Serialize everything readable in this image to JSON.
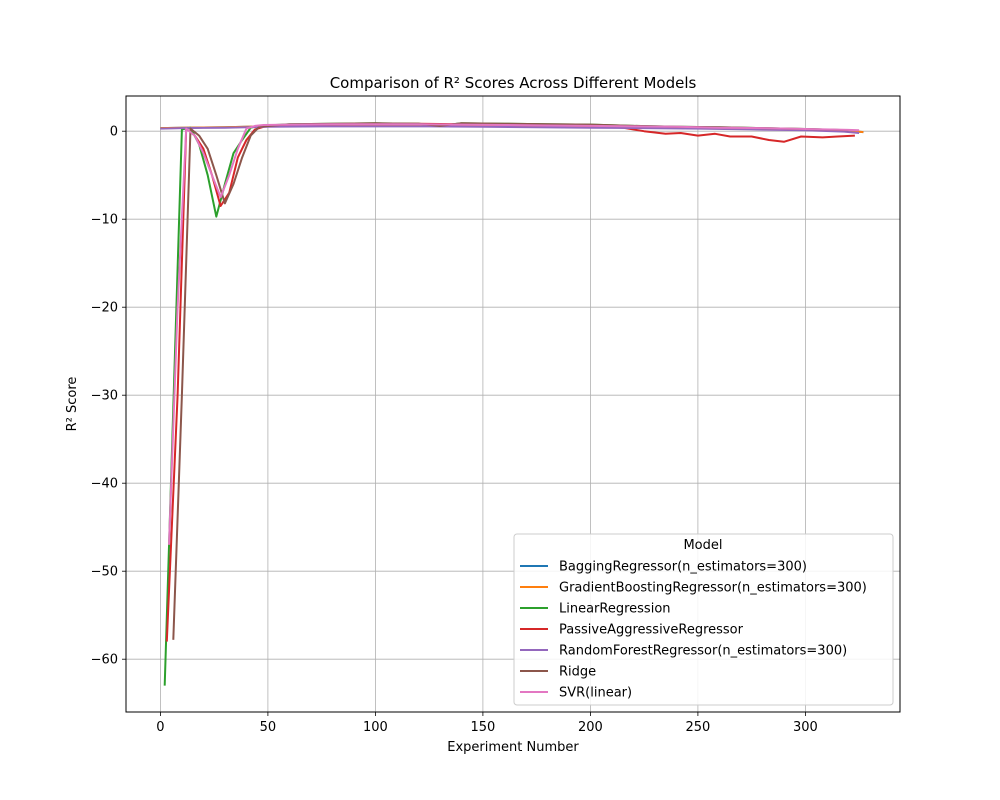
{
  "chart_data": {
    "type": "line",
    "title": "Comparison of R² Scores Across Different Models",
    "xlabel": "Experiment Number",
    "ylabel": "R² Score",
    "xlim": [
      -16,
      344
    ],
    "ylim": [
      -66,
      4
    ],
    "xticks": [
      0,
      50,
      100,
      150,
      200,
      250,
      300
    ],
    "yticks": [
      0,
      -10,
      -20,
      -30,
      -40,
      -50,
      -60
    ],
    "grid": true,
    "legend": {
      "title": "Model",
      "placement": "lower-right"
    },
    "series": [
      {
        "name": "BaggingRegressor(n_estimators=300)",
        "color": "#1f77b4",
        "x": [
          0,
          10,
          20,
          30,
          40,
          50,
          75,
          100,
          125,
          150,
          175,
          200,
          225,
          250,
          275,
          300,
          320,
          327
        ],
        "y": [
          0.35,
          0.4,
          0.42,
          0.45,
          0.5,
          0.55,
          0.6,
          0.6,
          0.6,
          0.58,
          0.55,
          0.5,
          0.45,
          0.4,
          0.3,
          0.2,
          0.05,
          -0.1
        ]
      },
      {
        "name": "GradientBoostingRegressor(n_estimators=300)",
        "color": "#ff7f0e",
        "x": [
          0,
          10,
          20,
          30,
          40,
          50,
          75,
          100,
          125,
          150,
          175,
          200,
          225,
          250,
          275,
          300,
          320,
          327
        ],
        "y": [
          0.35,
          0.4,
          0.42,
          0.45,
          0.5,
          0.55,
          0.6,
          0.6,
          0.6,
          0.58,
          0.55,
          0.5,
          0.45,
          0.4,
          0.3,
          0.2,
          0.05,
          -0.1
        ]
      },
      {
        "name": "LinearRegression",
        "color": "#2ca02c",
        "x": [
          2,
          10,
          14,
          18,
          22,
          26,
          30,
          34,
          38,
          42,
          46,
          60,
          80,
          100,
          120,
          130,
          140,
          160,
          180,
          200,
          220,
          240,
          260,
          280,
          300,
          320
        ],
        "y": [
          -63,
          0.2,
          0.4,
          -1.5,
          -5,
          -9.7,
          -6,
          -2.5,
          -1,
          0.4,
          0.6,
          0.8,
          0.85,
          0.9,
          0.85,
          0.6,
          0.9,
          0.85,
          0.8,
          0.75,
          0.6,
          0.5,
          0.45,
          0.35,
          0.25,
          0.1
        ]
      },
      {
        "name": "PassiveAggressiveRegressor",
        "color": "#d62728",
        "x": [
          3,
          8,
          12,
          16,
          20,
          24,
          28,
          32,
          36,
          40,
          44,
          48,
          60,
          80,
          100,
          120,
          140,
          160,
          180,
          200,
          215,
          225,
          235,
          242,
          250,
          258,
          265,
          275,
          283,
          290,
          298,
          308,
          315,
          323
        ],
        "y": [
          -58,
          -30,
          0.3,
          -0.5,
          -2,
          -5,
          -8.5,
          -7,
          -3,
          -1,
          0.2,
          0.5,
          0.7,
          0.8,
          0.85,
          0.85,
          0.8,
          0.75,
          0.7,
          0.6,
          0.4,
          0.0,
          -0.3,
          -0.2,
          -0.5,
          -0.3,
          -0.6,
          -0.6,
          -1.0,
          -1.2,
          -0.6,
          -0.7,
          -0.6,
          -0.5
        ]
      },
      {
        "name": "RandomForestRegressor(n_estimators=300)",
        "color": "#9467bd",
        "x": [
          0,
          10,
          20,
          30,
          40,
          50,
          75,
          100,
          125,
          150,
          175,
          200,
          225,
          250,
          275,
          300,
          318,
          325
        ],
        "y": [
          0.3,
          0.35,
          0.38,
          0.4,
          0.45,
          0.5,
          0.55,
          0.55,
          0.55,
          0.5,
          0.45,
          0.4,
          0.35,
          0.3,
          0.2,
          0.1,
          -0.05,
          -0.2
        ]
      },
      {
        "name": "Ridge",
        "color": "#8c564b",
        "x": [
          6,
          10,
          14,
          18,
          22,
          26,
          30,
          34,
          38,
          42,
          46,
          60,
          80,
          100,
          120,
          130,
          140,
          160,
          180,
          200,
          220,
          240,
          260,
          280,
          300,
          320
        ],
        "y": [
          -57.8,
          -30,
          0.3,
          -0.5,
          -2,
          -5,
          -8.2,
          -6,
          -3,
          -0.5,
          0.5,
          0.8,
          0.85,
          0.9,
          0.85,
          0.6,
          0.9,
          0.85,
          0.8,
          0.75,
          0.6,
          0.5,
          0.45,
          0.35,
          0.25,
          0.1
        ]
      },
      {
        "name": "SVR(linear)",
        "color": "#e377c2",
        "x": [
          4,
          8,
          12,
          16,
          20,
          24,
          28,
          32,
          36,
          40,
          44,
          48,
          60,
          80,
          100,
          120,
          140,
          160,
          180,
          200,
          220,
          240,
          260,
          280,
          300,
          320,
          325
        ],
        "y": [
          -47,
          -20,
          0.3,
          -0.5,
          -2.5,
          -5,
          -7.5,
          -5,
          -2,
          0.3,
          0.6,
          0.7,
          0.75,
          0.8,
          0.8,
          0.8,
          0.75,
          0.7,
          0.65,
          0.6,
          0.55,
          0.5,
          0.4,
          0.35,
          0.25,
          0.15,
          0.1
        ]
      }
    ]
  }
}
